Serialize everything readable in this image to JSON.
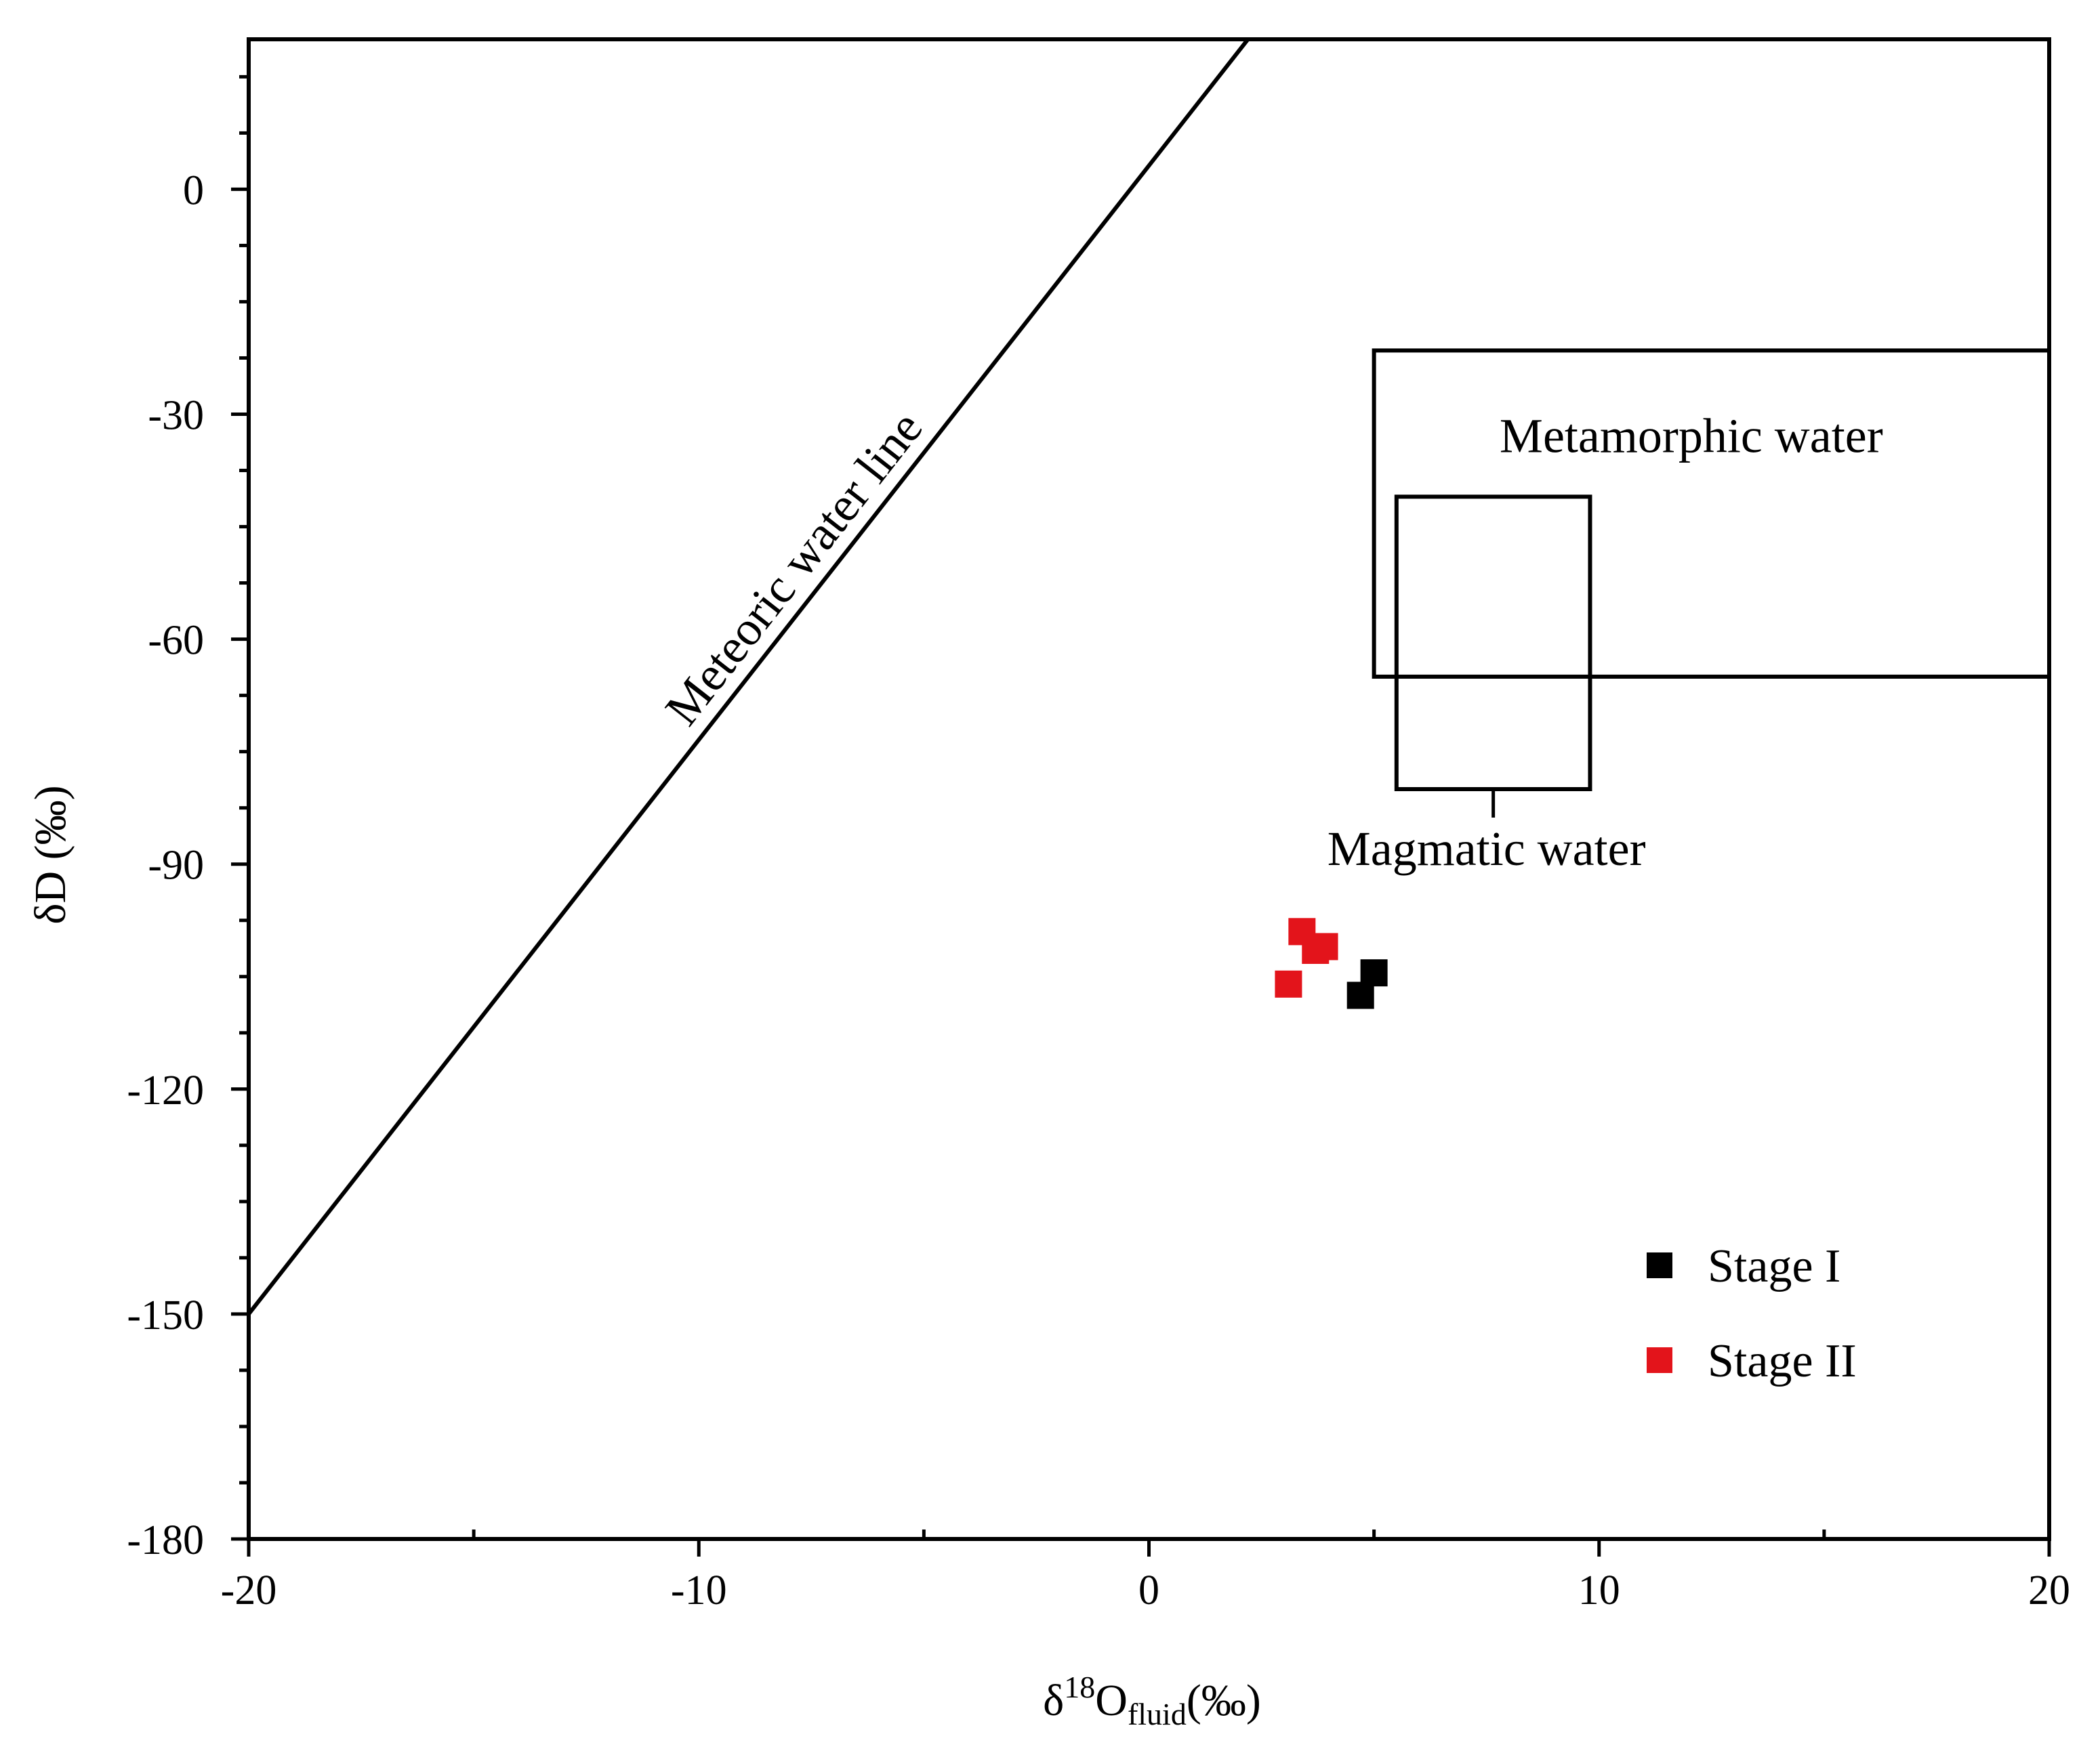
{
  "chart_data": {
    "type": "scatter",
    "title": "",
    "xlabel": {
      "delta": "δ",
      "superscript": "18",
      "element": "O",
      "subscript": "fluid",
      "unit": "(‰)"
    },
    "ylabel": "δD (‰)",
    "xlim": [
      -20,
      20
    ],
    "ylim": [
      -180,
      20
    ],
    "xticks": [
      -20,
      -10,
      0,
      10,
      20
    ],
    "xtick_labels": [
      "-20",
      "-10",
      "0",
      "10",
      "20"
    ],
    "yticks": [
      -180,
      -150,
      -120,
      -90,
      -60,
      -30,
      0
    ],
    "ytick_labels": [
      "-180",
      "-150",
      "-120",
      "-90",
      "-60",
      "-30",
      "0"
    ],
    "x_minor_step": 5,
    "y_minor_step": 7.5,
    "grid": false,
    "legend_position": "bottom-right",
    "series": [
      {
        "name": "Stage I",
        "color": "#000000",
        "marker": "square",
        "points": [
          {
            "x": 5.0,
            "y": -104.5
          },
          {
            "x": 4.7,
            "y": -107.5
          }
        ]
      },
      {
        "name": "Stage II",
        "color": "#e3141b",
        "marker": "square",
        "points": [
          {
            "x": 3.4,
            "y": -99.0
          },
          {
            "x": 3.7,
            "y": -101.5
          },
          {
            "x": 3.9,
            "y": -101.0
          },
          {
            "x": 3.1,
            "y": -106.0
          }
        ]
      }
    ],
    "regions": [
      {
        "label": "Metamorphic water",
        "x_range": [
          5.0,
          20.0
        ],
        "y_range": [
          -65.0,
          -21.5
        ]
      },
      {
        "label": "Magmatic water",
        "x_range": [
          5.5,
          9.8
        ],
        "y_range": [
          -80.0,
          -41.0
        ]
      }
    ],
    "lines": [
      {
        "label": "Meteoric water line",
        "points": [
          {
            "x": -20,
            "y": -150
          },
          {
            "x": 2.2,
            "y": 20
          }
        ]
      }
    ]
  }
}
